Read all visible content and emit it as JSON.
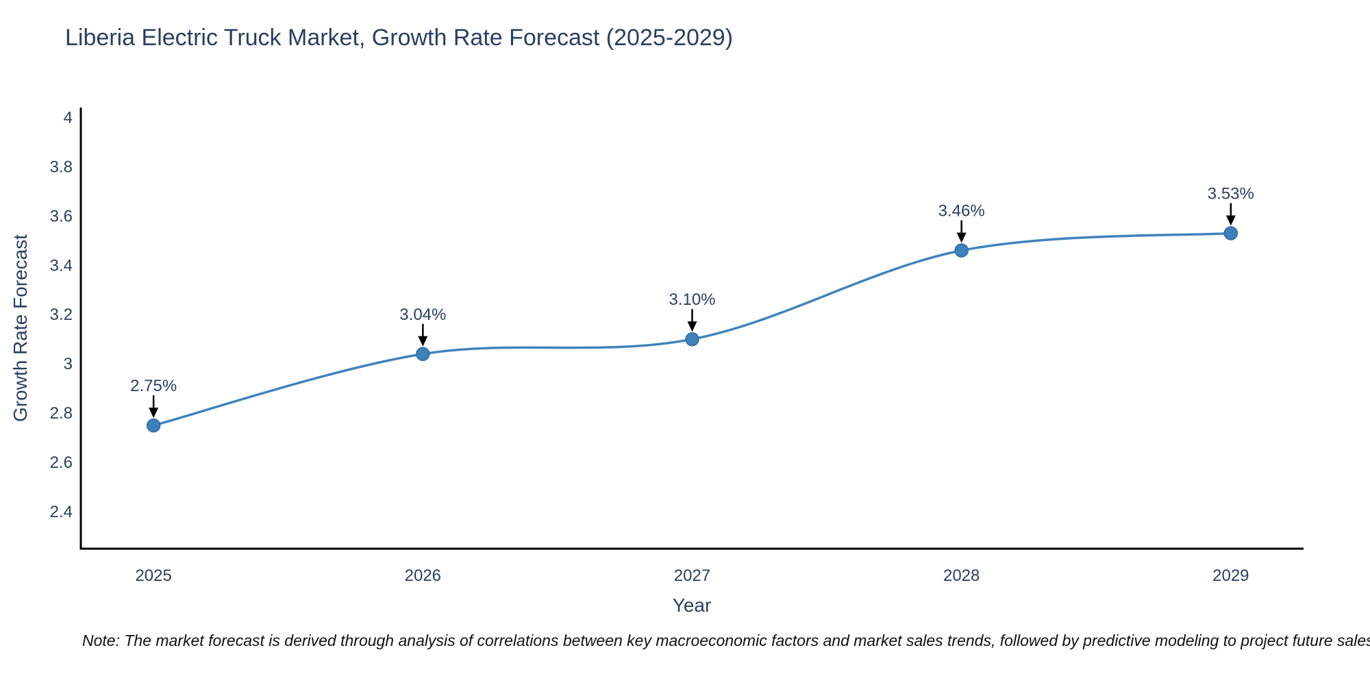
{
  "title": "Liberia Electric Truck Market, Growth Rate Forecast (2025-2029)",
  "note": "Note: The market forecast is derived through analysis of correlations between key macroeconomic factors and market sales trends, followed by predictive modeling to project future sales",
  "chart_data": {
    "type": "line",
    "title": "Liberia Electric Truck Market, Growth Rate Forecast (2025-2029)",
    "x": [
      2025,
      2026,
      2027,
      2028,
      2029
    ],
    "series": [
      {
        "name": "Growth Rate Forecast",
        "values": [
          2.75,
          3.04,
          3.1,
          3.46,
          3.53
        ]
      }
    ],
    "point_labels": [
      "2.75%",
      "3.04%",
      "3.10%",
      "3.46%",
      "3.53%"
    ],
    "xlabel": "Year",
    "ylabel": "Growth Rate Forecast",
    "xticks": [
      "2025",
      "2026",
      "2027",
      "2028",
      "2029"
    ],
    "yticks": [
      "2.4",
      "2.6",
      "2.8",
      "3",
      "3.2",
      "3.4",
      "3.6",
      "3.8",
      "4"
    ],
    "xlim": [
      2024.73,
      2029.27
    ],
    "ylim": [
      2.25,
      4.04
    ],
    "line_shape": "spline",
    "grid": false,
    "legend_position": "none",
    "annotations_have_arrows": true
  },
  "colors": {
    "line": "#3f83bd",
    "marker_fill": "#3d81bc",
    "marker_stroke": "#2f6ba1",
    "axis_line": "#000000",
    "chart_text": "#2a3f5f",
    "annotation_text": "#2a3f5f",
    "arrow": "#000000",
    "note_text": "#111111",
    "background": "#ffffff"
  }
}
